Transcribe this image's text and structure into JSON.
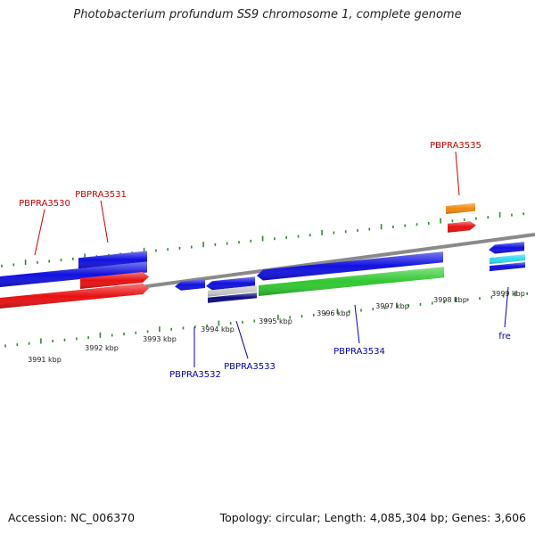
{
  "title": "Photobacterium profundum SS9 chromosome 1, complete genome",
  "footer": {
    "accession": "Accession: NC_006370",
    "stats": "Topology: circular; Length: 4,085,304 bp; Genes: 3,606"
  },
  "colors": {
    "background": "#ffffff",
    "backbone": "#8a8a8a",
    "tick": "#2e8b2e",
    "label_forward": "#cc0000",
    "label_reverse": "#0000aa"
  },
  "kbp_labels": [
    {
      "kbp": 3991,
      "text": "3991 kbp"
    },
    {
      "kbp": 3992,
      "text": "3992 kbp"
    },
    {
      "kbp": 3993,
      "text": "3993 kbp"
    },
    {
      "kbp": 3994,
      "text": "3994 kbp"
    },
    {
      "kbp": 3995,
      "text": "3995 kbp"
    },
    {
      "kbp": 3996,
      "text": "3996 kbp"
    },
    {
      "kbp": 3997,
      "text": "3997 kbp"
    },
    {
      "kbp": 3998,
      "text": "3998 kbp"
    },
    {
      "kbp": 3999,
      "text": "3999 kbp"
    }
  ],
  "gene_labels": [
    {
      "name": "PBPRA3530",
      "strand": "forward"
    },
    {
      "name": "PBPRA3531",
      "strand": "forward"
    },
    {
      "name": "PBPRA3535",
      "strand": "forward"
    },
    {
      "name": "PBPRA3532",
      "strand": "reverse"
    },
    {
      "name": "PBPRA3533",
      "strand": "reverse"
    },
    {
      "name": "PBPRA3534",
      "strand": "reverse"
    },
    {
      "name": "fre",
      "strand": "reverse"
    }
  ],
  "features": [
    {
      "name": "PBPRA3530",
      "strand": "forward",
      "color": "#1010e0"
    },
    {
      "name": "PBPRA3531",
      "strand": "forward",
      "color": "#1010e0"
    },
    {
      "name": "PBPRA3530",
      "strand": "forward",
      "color": "#e81010"
    },
    {
      "name": "PBPRA3531",
      "strand": "forward",
      "color": "#e81010"
    },
    {
      "name": "PBPRA3535",
      "strand": "forward",
      "color": "#f08a10"
    },
    {
      "name": "PBPRA3535",
      "strand": "forward",
      "color": "#e81010"
    },
    {
      "name": "PBPRA3532",
      "strand": "reverse",
      "color": "#1010e0"
    },
    {
      "name": "PBPRA3533",
      "strand": "reverse",
      "color": "#1010e0"
    },
    {
      "name": "PBPRA3533",
      "strand": "reverse",
      "color": "#c8c8c8"
    },
    {
      "name": "PBPRA3533",
      "strand": "reverse",
      "color": "#0a0a80"
    },
    {
      "name": "PBPRA3534",
      "strand": "reverse",
      "color": "#1010e0"
    },
    {
      "name": "PBPRA3534",
      "strand": "reverse",
      "color": "#30c830"
    },
    {
      "name": "fre",
      "strand": "reverse",
      "color": "#1010e0"
    },
    {
      "name": "fre",
      "strand": "reverse",
      "color": "#30d8f0"
    },
    {
      "name": "fre",
      "strand": "reverse",
      "color": "#1010e0"
    }
  ]
}
